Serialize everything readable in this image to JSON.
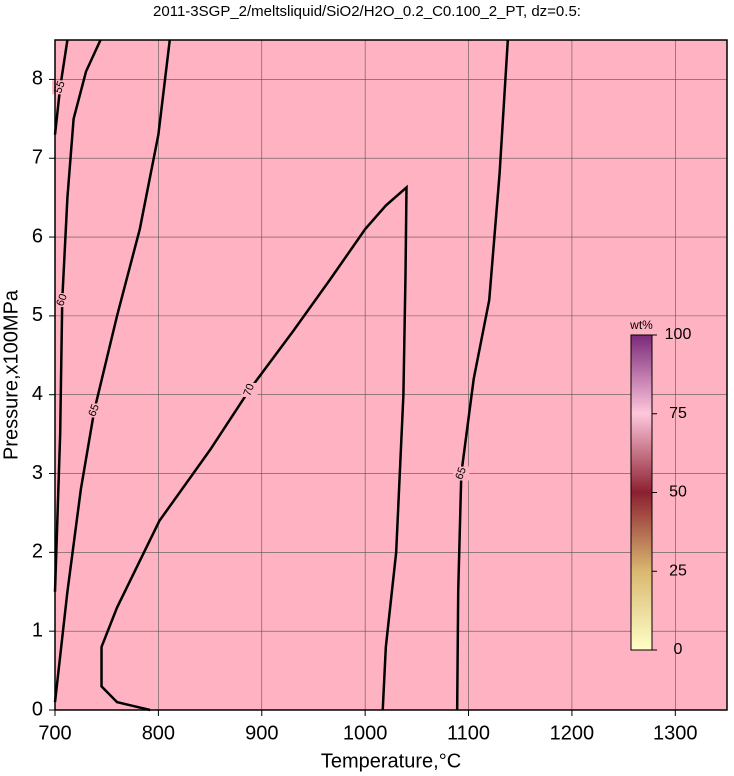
{
  "chart_data": {
    "type": "contour",
    "title": "2011-3SGP_2/meltsliquid/SiO2/H2O_0.2_C0.100_2_PT, dz=0.5:",
    "xlabel": "Temperature,°C",
    "ylabel": "Pressure,x100MPa",
    "xlim": [
      700,
      1350
    ],
    "ylim": [
      0,
      8.5
    ],
    "xticks": [
      700,
      800,
      900,
      1000,
      1100,
      1200,
      1300
    ],
    "yticks": [
      0,
      1,
      2,
      3,
      4,
      5,
      6,
      7,
      8
    ],
    "grid": true,
    "fill": "#ffb3c2",
    "contours": [
      {
        "level": 55,
        "x": [
          700,
          705,
          712
        ],
        "y": [
          7.3,
          7.9,
          8.5
        ]
      },
      {
        "level": 60,
        "x": [
          700,
          705,
          707,
          712,
          718,
          730,
          744
        ],
        "y": [
          1.5,
          3.5,
          5.2,
          6.5,
          7.5,
          8.1,
          8.5
        ]
      },
      {
        "level": 65,
        "x": [
          700,
          712,
          725,
          738,
          760,
          782,
          800,
          811
        ],
        "y": [
          0.1,
          1.5,
          2.8,
          3.8,
          5,
          6.1,
          7.3,
          8.5
        ]
      },
      {
        "level": 70,
        "x": [
          792,
          760,
          745,
          745,
          760,
          801,
          850,
          888,
          930,
          966,
          1000,
          1020,
          1040,
          1039,
          1037,
          1030,
          1020,
          1017
        ],
        "y": [
          0,
          0.1,
          0.3,
          0.8,
          1.3,
          2.4,
          3.3,
          4.06,
          4.8,
          5.46,
          6.1,
          6.4,
          6.63,
          5.5,
          4.0,
          2.0,
          0.8,
          0
        ]
      },
      {
        "level": 65,
        "x": [
          1089,
          1090,
          1093,
          1105,
          1120,
          1130,
          1138
        ],
        "y": [
          0,
          1.5,
          3,
          4.2,
          5.2,
          6.8,
          8.5
        ]
      }
    ],
    "colorbar": {
      "label": "wt%",
      "lim": [
        0,
        100
      ],
      "ticks": [
        0,
        25,
        50,
        75,
        100
      ],
      "colors": [
        "#ffffc8",
        "#d9b870",
        "#8c2030",
        "#ffc6dc",
        "#7a2a7a"
      ]
    }
  }
}
